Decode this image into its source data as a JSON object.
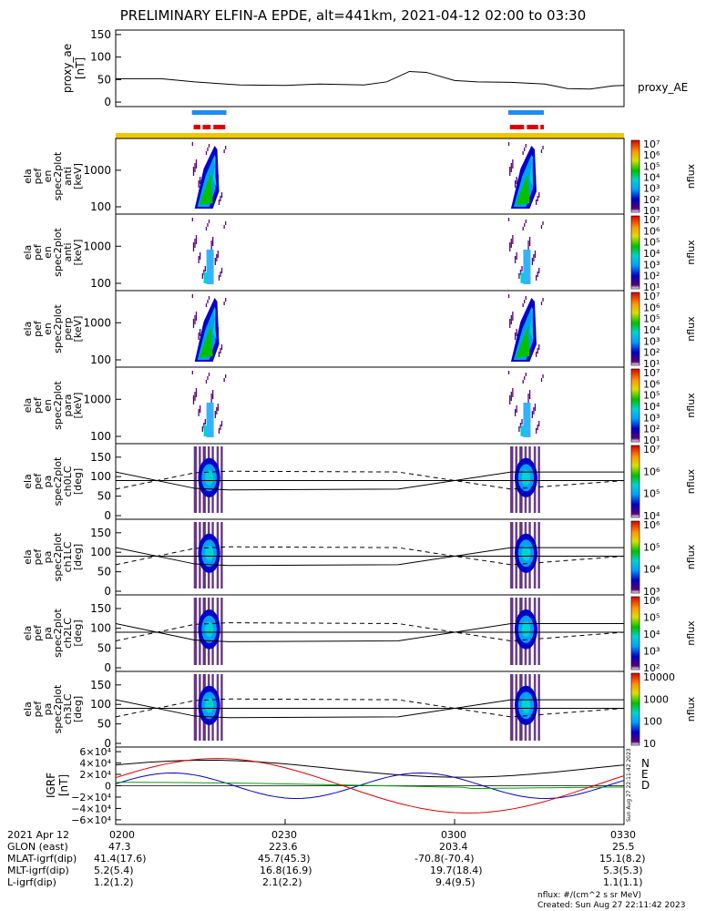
{
  "title": "PRELIMINARY ELFIN-A EPDE, alt=441km, 2021-04-12 02:00 to 03:30",
  "chart_data": {
    "type": "multi-panel spectrogram",
    "time_range": [
      "02:00",
      "03:30"
    ],
    "panels": [
      {
        "id": "proxy_ae",
        "ylabel": [
          "proxy_ae",
          "[nT]"
        ],
        "ylim": [
          -10,
          160
        ],
        "yticks": [
          "150",
          "100",
          "50",
          "0"
        ],
        "legend": "proxy_AE",
        "series_times_min": [
          0,
          8,
          14,
          22,
          30,
          36,
          44,
          48,
          52,
          55,
          60,
          64,
          70,
          76,
          80,
          84,
          88,
          90
        ],
        "series_values": [
          52,
          52,
          45,
          38,
          37,
          40,
          38,
          45,
          68,
          66,
          48,
          45,
          44,
          40,
          30,
          29,
          36,
          37
        ]
      },
      {
        "id": "en_anti",
        "ylabel": [
          "ela",
          "pef",
          "en",
          "spec2plot",
          "anti",
          "[keV]"
        ],
        "yticks": [
          "1000",
          "100"
        ],
        "colorbar_ticks": [
          "10⁷",
          "10⁶",
          "10⁵",
          "10⁴",
          "10³",
          "10²",
          "10¹"
        ],
        "colorbar_label": "nflux"
      },
      {
        "id": "en_antipert",
        "ylabel": [
          "ela",
          "pef",
          "en",
          "spec2plot",
          "anti",
          "[keV]"
        ],
        "yticks": [
          "1000",
          "100"
        ],
        "colorbar_ticks": [
          "10⁷",
          "10⁶",
          "10⁵",
          "10⁴",
          "10³",
          "10²",
          "10¹"
        ],
        "colorbar_label": "nflux"
      },
      {
        "id": "en_perp",
        "ylabel": [
          "ela",
          "pef",
          "en",
          "spec2plot",
          "perp",
          "[keV]"
        ],
        "yticks": [
          "1000",
          "100"
        ],
        "colorbar_ticks": [
          "10⁷",
          "10⁶",
          "10⁵",
          "10⁴",
          "10³",
          "10²",
          "10¹"
        ],
        "colorbar_label": "nflux"
      },
      {
        "id": "en_para",
        "ylabel": [
          "ela",
          "pef",
          "en",
          "spec2plot",
          "para",
          "[keV]"
        ],
        "yticks": [
          "1000",
          "100"
        ],
        "colorbar_ticks": [
          "10⁷",
          "10⁶",
          "10⁵",
          "10⁴",
          "10³",
          "10²",
          "10¹"
        ],
        "colorbar_label": "nflux"
      },
      {
        "id": "pa_ch0",
        "ylabel": [
          "ela",
          "pef",
          "pa",
          "spec2plot",
          "ch0LC",
          "[deg]"
        ],
        "yticks": [
          "150",
          "100",
          "50",
          "0"
        ],
        "colorbar_ticks": [
          "10⁷",
          "10⁶",
          "10⁵",
          "10⁴"
        ],
        "colorbar_label": "nflux"
      },
      {
        "id": "pa_ch1",
        "ylabel": [
          "ela",
          "pef",
          "pa",
          "spec2plot",
          "ch1LC",
          "[deg]"
        ],
        "yticks": [
          "150",
          "100",
          "50",
          "0"
        ],
        "colorbar_ticks": [
          "10⁶",
          "10⁵",
          "10⁴",
          "10³"
        ],
        "colorbar_label": "nflux"
      },
      {
        "id": "pa_ch2",
        "ylabel": [
          "ela",
          "pef",
          "pa",
          "spec2plot",
          "ch2LC",
          "[deg]"
        ],
        "yticks": [
          "150",
          "100",
          "50",
          "0"
        ],
        "colorbar_ticks": [
          "10⁶",
          "10⁵",
          "10⁴",
          "10³",
          "10²"
        ],
        "colorbar_label": "nflux"
      },
      {
        "id": "pa_ch3",
        "ylabel": [
          "ela",
          "pef",
          "pa",
          "spec2plot",
          "ch3LC",
          "[deg]"
        ],
        "yticks": [
          "150",
          "100",
          "50",
          "0"
        ],
        "colorbar_ticks": [
          "10000",
          "1000",
          "100",
          "10"
        ],
        "colorbar_label": "nflux"
      },
      {
        "id": "igrf",
        "ylabel": [
          "IGRF",
          "[nT]"
        ],
        "yticks": [
          "6×10⁴",
          "4×10⁴",
          "2×10⁴",
          "0",
          "−2×10⁴",
          "−4×10⁴",
          "−6×10⁴"
        ],
        "legend": [
          "N",
          "E",
          "D"
        ]
      }
    ],
    "x_tick_labels": [
      "0200",
      "0230",
      "0300",
      "0330"
    ],
    "x_tick_minutes": [
      0,
      30,
      60,
      90
    ]
  },
  "footer": {
    "date": "2021 Apr 12",
    "rows": [
      {
        "label": "GLON (east)",
        "values": [
          "47.3",
          "223.6",
          "203.4",
          "25.5"
        ]
      },
      {
        "label": "MLAT-igrf(dip)",
        "values": [
          "41.4(17.6)",
          "45.7(45.3)",
          "-70.8(-70.4)",
          "15.1(8.2)"
        ]
      },
      {
        "label": "MLT-igrf(dip)",
        "values": [
          "5.2(5.4)",
          "16.8(16.9)",
          "19.7(18.4)",
          "5.3(5.3)"
        ]
      },
      {
        "label": "L-igrf(dip)",
        "values": [
          "1.2(1.2)",
          "2.1(2.2)",
          "9.4(9.5)",
          "1.1(1.1)"
        ]
      }
    ],
    "units_note": "nflux: #/(cm^2 s sr MeV)",
    "created": "Created: Sun Aug 27 22:11:42 2023",
    "side_stamp": "Sun Aug 27 22:11:42 2023"
  },
  "colors": {
    "science_bar": "#f0c800",
    "blue_bar": "#1e8cf0",
    "red_bar": "#e00000",
    "igrf_n": "#000000",
    "igrf_e": "#0000c8",
    "igrf_d": "#00a000",
    "igrf_total": "#e00000"
  }
}
